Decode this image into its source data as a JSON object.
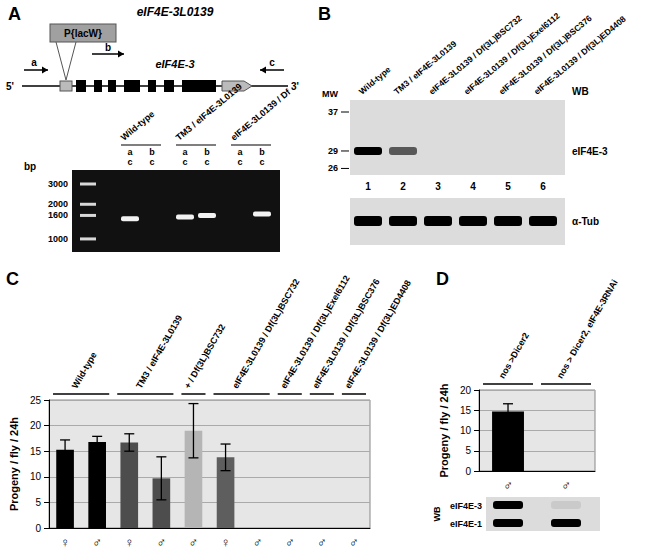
{
  "panel_a": {
    "label": "A",
    "title": "eIF4E-3L0139",
    "insert": "P{lacW}",
    "gene": "eIF4E-3",
    "primer_labels": [
      "a",
      "b",
      "c"
    ],
    "ends": [
      "5'",
      "3'"
    ],
    "gel": {
      "unit": "bp",
      "markers": [
        3000,
        2000,
        1600,
        1000
      ],
      "groups": [
        {
          "label": "Wild-type",
          "lanes": [
            {
              "primers": [
                "a",
                "c"
              ],
              "band_bp": 1500
            },
            {
              "primers": [
                "b",
                "c"
              ],
              "band_bp": null
            }
          ]
        },
        {
          "label": "TM3 / eIF4E-3L0139",
          "lanes": [
            {
              "primers": [
                "a",
                "c"
              ],
              "band_bp": 1550
            },
            {
              "primers": [
                "b",
                "c"
              ],
              "band_bp": 1600
            }
          ]
        },
        {
          "label": "eIF4E-3L0139 / Df",
          "lanes": [
            {
              "primers": [
                "a",
                "c"
              ],
              "band_bp": null
            },
            {
              "primers": [
                "b",
                "c"
              ],
              "band_bp": 1650
            }
          ]
        }
      ]
    }
  },
  "panel_b": {
    "label": "B",
    "mw_label": "MW",
    "mw_markers": [
      37,
      29,
      26
    ],
    "wb_label": "WB",
    "lanes": [
      {
        "number": 1,
        "label": "Wild-type"
      },
      {
        "number": 2,
        "label": "TM3 / eIF4E-3L0139"
      },
      {
        "number": 3,
        "label": "eIF4E-3L0139 / Df(3L)BSC732"
      },
      {
        "number": 4,
        "label": "eIF4E-3L0139 / Df(3L)Exel6112"
      },
      {
        "number": 5,
        "label": "eIF4E-3L0139 / Df(3L)BSC376"
      },
      {
        "number": 6,
        "label": "eIF4E-3L0139 / Df(3L)ED4408"
      }
    ],
    "blots": [
      {
        "label": "eIF4E-3",
        "band_mw": 29,
        "signal": [
          1,
          0.6,
          0,
          0,
          0,
          0
        ]
      },
      {
        "label": "α-Tub",
        "signal": [
          1,
          1,
          1,
          1,
          1,
          1
        ]
      }
    ]
  },
  "chart_data": [
    {
      "panel": "C",
      "type": "bar",
      "y_label": "Progeny / fly / 24h",
      "categories": [
        "♀",
        "♂",
        "♀",
        "♂",
        "♂",
        "♀",
        "♂",
        "♂",
        "♂",
        "♂"
      ],
      "values": [
        15.3,
        16.8,
        16.7,
        9.7,
        19.0,
        13.8,
        0,
        0,
        0,
        0
      ],
      "errors": [
        1.9,
        1.1,
        1.7,
        4.2,
        5.3,
        2.6,
        null,
        null,
        null,
        null
      ],
      "colors": [
        "#000000",
        "#000000",
        "#4d4d4d",
        "#4d4d4d",
        "#b5b5b5",
        "#5e5e5e",
        "#5e5e5e",
        "#5e5e5e",
        "#5e5e5e",
        "#5e5e5e"
      ],
      "groups": [
        {
          "label": "Wild-type",
          "span": 2
        },
        {
          "label": "TM3 / eIF4E-3L0139",
          "span": 2
        },
        {
          "label": "+ / Df(3L)BSC732",
          "span": 1
        },
        {
          "label": "eIF4E-3L0139 / Df(3L)BSC732",
          "span": 2
        },
        {
          "label": "eIF4E-3L0139 / Df(3L)Exel6112",
          "span": 1
        },
        {
          "label": "eIF4E-3L0139 / Df(3L)BSC376",
          "span": 1
        },
        {
          "label": "eIF4E-3L0139 / Df(3L)ED4408",
          "span": 1
        }
      ],
      "ylim": [
        0,
        25
      ],
      "yticks": [
        0,
        5,
        10,
        15,
        20,
        25
      ],
      "grid": true
    },
    {
      "panel": "D",
      "type": "bar",
      "y_label": "Progeny / fly / 24h",
      "categories": [
        "♂",
        "♂"
      ],
      "values": [
        14.7,
        0
      ],
      "errors": [
        1.9,
        null
      ],
      "colors": [
        "#000000",
        "#000000"
      ],
      "groups": [
        {
          "label": "nos >Dicer2",
          "span": 1
        },
        {
          "label": "nos > Dicer2, eIF4E-3RNAi",
          "span": 1
        }
      ],
      "ylim": [
        0,
        20
      ],
      "yticks": [
        0,
        5,
        10,
        15,
        20
      ],
      "grid": true
    }
  ],
  "panel_d_blot": {
    "wb_label": "WB",
    "rows": [
      {
        "label": "eIF4E-3",
        "signal": [
          1,
          0.08
        ]
      },
      {
        "label": "eIF4E-1",
        "signal": [
          1,
          1
        ]
      }
    ]
  }
}
